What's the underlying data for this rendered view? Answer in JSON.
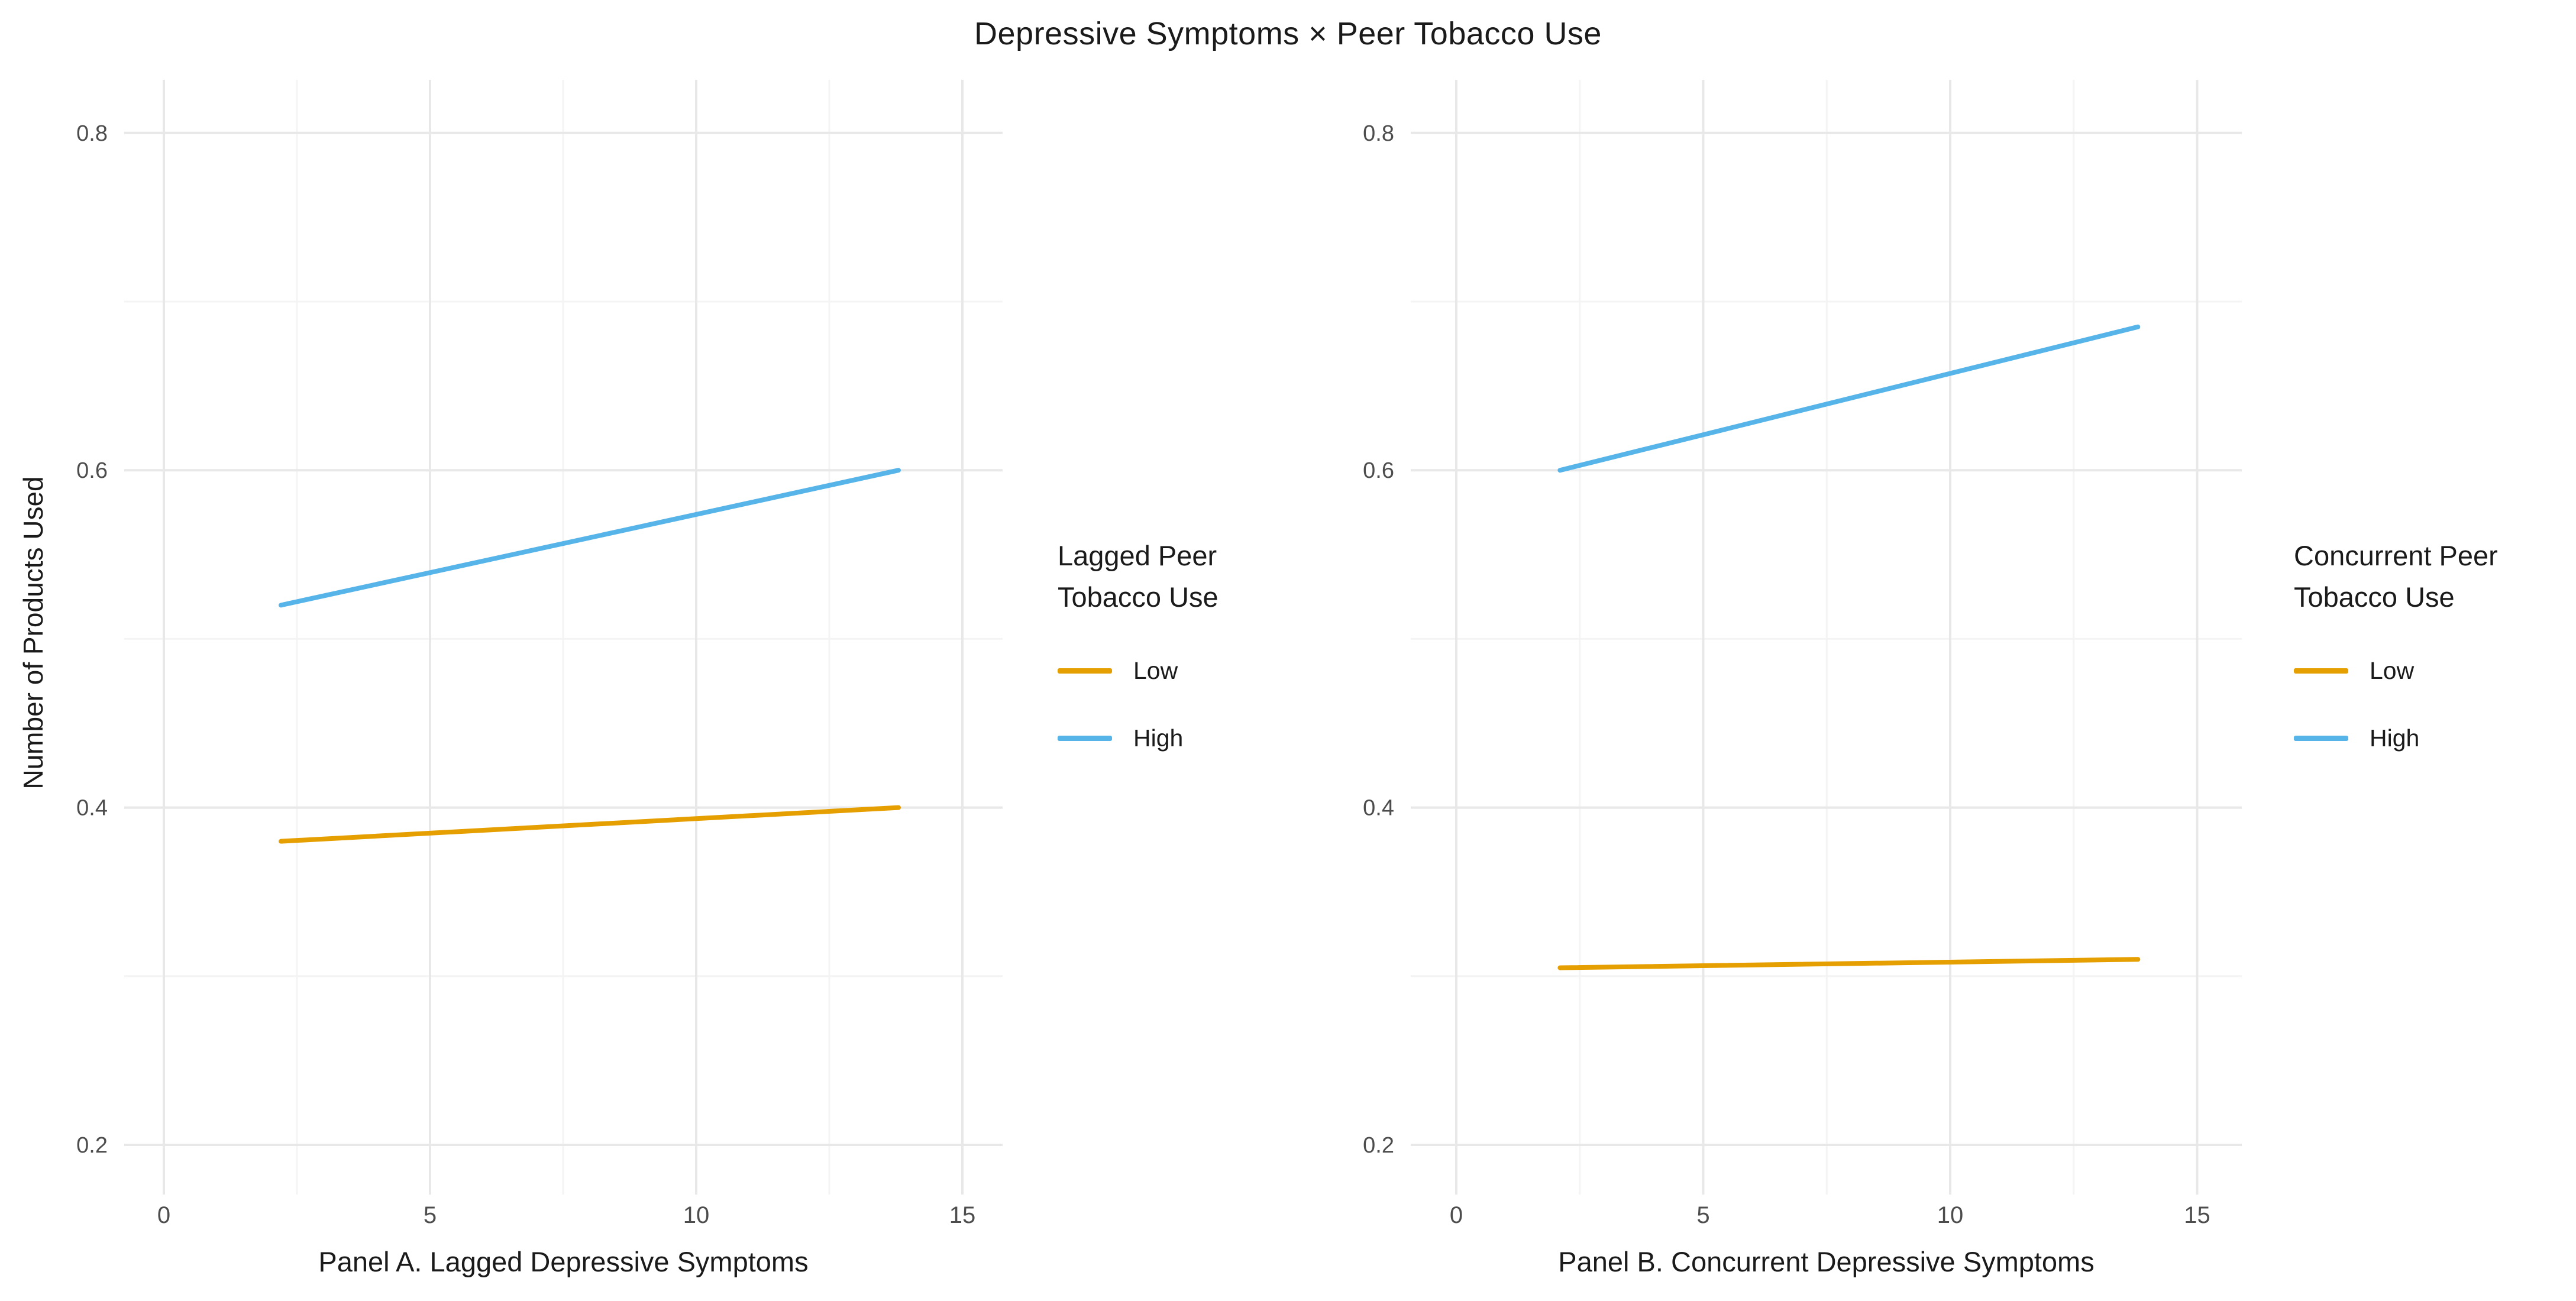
{
  "theme": {
    "background": "#ffffff",
    "grid_major_color": "#e8e8e8",
    "grid_minor_color": "#f4f4f4",
    "tick_label_color": "#4d4d4d",
    "text_color": "#1a1a1a",
    "low_color": "#E69F00",
    "high_color": "#56B4E9"
  },
  "chart_data": {
    "type": "line",
    "title": "Depressive Symptoms × Peer Tobacco Use",
    "ylabel": "Number of Products Used",
    "xlim": [
      -0.9,
      15.9
    ],
    "ylim": [
      0.17,
      0.83
    ],
    "y_ticks": [
      0.2,
      0.4,
      0.6,
      0.8
    ],
    "x_ticks": [
      0,
      5,
      10,
      15
    ],
    "y_minor_gridlines": [
      0.3,
      0.5,
      0.7
    ],
    "x_minor_gridlines": [
      2.5,
      7.5,
      12.5
    ],
    "grid": true,
    "legend_position": "right-of-each-panel",
    "panels": [
      {
        "xlabel": "Panel A. Lagged Depressive Symptoms",
        "legend": {
          "title_lines": [
            "Lagged Peer",
            "Tobacco Use"
          ],
          "entries": [
            {
              "label": "Low",
              "color": "#E69F00"
            },
            {
              "label": "High",
              "color": "#56B4E9"
            }
          ]
        },
        "series": [
          {
            "name": "Low",
            "color": "#E69F00",
            "x": [
              2.2,
              13.8
            ],
            "y": [
              0.38,
              0.4
            ]
          },
          {
            "name": "High",
            "color": "#56B4E9",
            "x": [
              2.2,
              13.8
            ],
            "y": [
              0.52,
              0.6
            ]
          }
        ]
      },
      {
        "xlabel": "Panel B. Concurrent Depressive Symptoms",
        "legend": {
          "title_lines": [
            "Concurrent Peer",
            "Tobacco Use"
          ],
          "entries": [
            {
              "label": "Low",
              "color": "#E69F00"
            },
            {
              "label": "High",
              "color": "#56B4E9"
            }
          ]
        },
        "series": [
          {
            "name": "Low",
            "color": "#E69F00",
            "x": [
              2.1,
              13.8
            ],
            "y": [
              0.305,
              0.31
            ]
          },
          {
            "name": "High",
            "color": "#56B4E9",
            "x": [
              2.1,
              13.8
            ],
            "y": [
              0.6,
              0.685
            ]
          }
        ]
      }
    ]
  }
}
